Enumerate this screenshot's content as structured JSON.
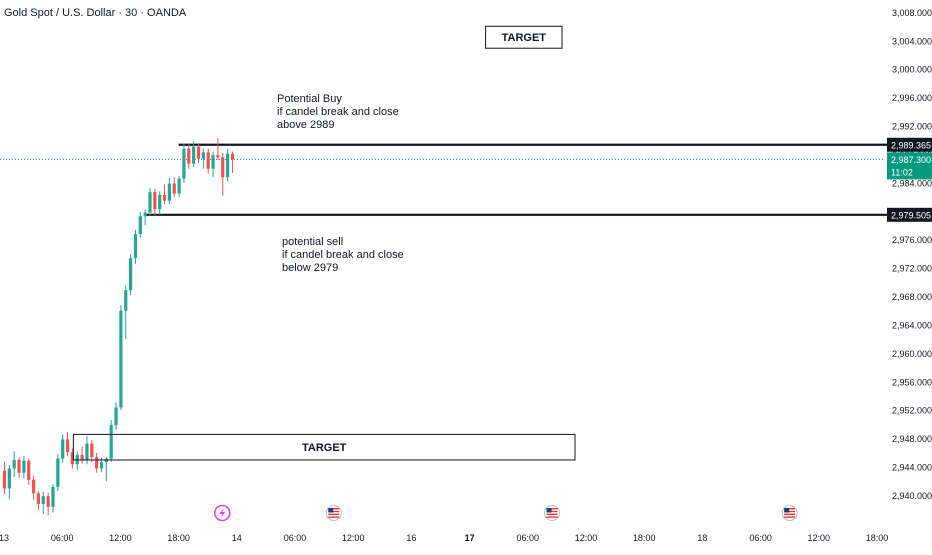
{
  "header": {
    "symbol_title": "Gold Spot / U.S. Dollar · 30 · OANDA"
  },
  "annotations": {
    "target_top_label": "TARGET",
    "target_bottom_label": "TARGET",
    "buy_note": [
      "Potential Buy",
      "if candel break and close",
      "above 2989"
    ],
    "sell_note": [
      "potential sell",
      "if candel break and close",
      "below 2979"
    ]
  },
  "price_tags": {
    "resistance_level": "2,989.365",
    "support_level": "2,979.505",
    "last_price": "2,987.300",
    "countdown": "11:02"
  },
  "colors": {
    "up": "#26a69a",
    "down": "#ef5350",
    "last_price_bg": "#089981",
    "line": "#131722",
    "event_icon": "#e040fb",
    "us_flag": "#e53935"
  },
  "chart_data": {
    "type": "candlestick",
    "title": "Gold Spot / U.S. Dollar · 30 · OANDA",
    "y_ticks": [
      3008,
      3004,
      3000,
      2996,
      2992,
      2988,
      2984,
      2980,
      2976,
      2972,
      2968,
      2964,
      2960,
      2956,
      2952,
      2948,
      2944,
      2940
    ],
    "y_tick_labels": [
      "3,008.000",
      "3,004.000",
      "3,000.000",
      "2,996.000",
      "2,992.000",
      "2,988.000",
      "2,984.000",
      "2,980.000",
      "2,976.000",
      "2,972.000",
      "2,968.000",
      "2,964.000",
      "2,960.000",
      "2,956.000",
      "2,952.000",
      "2,948.000",
      "2,944.000",
      "2,940.000"
    ],
    "ylim": [
      2937.5,
      3009.5
    ],
    "x_tick_labels": [
      "13",
      "06:00",
      "12:00",
      "18:00",
      "14",
      "06:00",
      "12:00",
      "16",
      "17",
      "06:00",
      "12:00",
      "18:00",
      "18",
      "06:00",
      "12:00",
      "18:00"
    ],
    "x_tick_bold": [
      false,
      false,
      false,
      false,
      false,
      false,
      false,
      false,
      true,
      false,
      false,
      false,
      false,
      false,
      false,
      false
    ],
    "x_tick_bar_index": [
      0,
      12,
      24,
      36,
      48,
      60,
      72,
      84,
      96,
      108,
      120,
      132,
      144,
      156,
      168,
      180
    ],
    "candles": [
      [
        2943.5,
        2944.8,
        2940.2,
        2941.0
      ],
      [
        2941.0,
        2944.3,
        2939.5,
        2943.8
      ],
      [
        2943.8,
        2946.2,
        2942.6,
        2945.0
      ],
      [
        2945.0,
        2945.4,
        2942.5,
        2943.2
      ],
      [
        2943.2,
        2945.6,
        2942.4,
        2944.9
      ],
      [
        2944.9,
        2945.2,
        2941.5,
        2942.2
      ],
      [
        2942.2,
        2942.8,
        2939.4,
        2940.3
      ],
      [
        2940.3,
        2940.6,
        2938.0,
        2938.8
      ],
      [
        2938.8,
        2940.5,
        2937.4,
        2939.9
      ],
      [
        2939.9,
        2940.4,
        2937.2,
        2938.4
      ],
      [
        2938.4,
        2941.6,
        2937.6,
        2941.2
      ],
      [
        2941.2,
        2945.8,
        2940.6,
        2945.2
      ],
      [
        2945.2,
        2948.6,
        2944.6,
        2947.9
      ],
      [
        2947.9,
        2948.9,
        2945.5,
        2946.1
      ],
      [
        2946.1,
        2946.6,
        2943.8,
        2944.4
      ],
      [
        2944.4,
        2946.2,
        2943.6,
        2945.7
      ],
      [
        2945.7,
        2946.9,
        2944.5,
        2945.0
      ],
      [
        2945.0,
        2948.4,
        2944.4,
        2947.3
      ],
      [
        2947.3,
        2947.8,
        2944.7,
        2945.4
      ],
      [
        2945.4,
        2946.0,
        2943.2,
        2943.8
      ],
      [
        2943.8,
        2945.3,
        2943.3,
        2944.7
      ],
      [
        2944.7,
        2945.4,
        2942.0,
        2945.2
      ],
      [
        2945.2,
        2950.6,
        2944.7,
        2949.9
      ],
      [
        2949.9,
        2953.1,
        2949.2,
        2952.4
      ],
      [
        2952.4,
        2966.8,
        2952.0,
        2966.0
      ],
      [
        2966.0,
        2969.6,
        2962.0,
        2968.9
      ],
      [
        2968.9,
        2974.0,
        2968.2,
        2973.4
      ],
      [
        2973.4,
        2977.4,
        2972.6,
        2976.8
      ],
      [
        2976.8,
        2979.9,
        2976.2,
        2979.3
      ],
      [
        2979.3,
        2980.3,
        2978.0,
        2979.8
      ],
      [
        2979.8,
        2983.3,
        2979.4,
        2982.7
      ],
      [
        2982.7,
        2983.2,
        2979.3,
        2980.3
      ],
      [
        2980.3,
        2982.8,
        2979.5,
        2982.3
      ],
      [
        2982.3,
        2983.8,
        2981.0,
        2981.5
      ],
      [
        2981.5,
        2984.7,
        2981.0,
        2983.9
      ],
      [
        2983.9,
        2984.8,
        2982.0,
        2982.5
      ],
      [
        2982.5,
        2985.0,
        2982.0,
        2984.6
      ],
      [
        2984.6,
        2989.5,
        2984.0,
        2988.8
      ],
      [
        2988.8,
        2989.4,
        2986.0,
        2986.7
      ],
      [
        2986.7,
        2989.9,
        2986.2,
        2989.1
      ],
      [
        2989.1,
        2989.6,
        2986.8,
        2987.4
      ],
      [
        2987.4,
        2988.8,
        2986.0,
        2988.3
      ],
      [
        2988.3,
        2988.8,
        2985.3,
        2986.0
      ],
      [
        2986.0,
        2988.4,
        2984.8,
        2987.9
      ],
      [
        2987.9,
        2990.3,
        2987.2,
        2987.6
      ],
      [
        2987.6,
        2988.2,
        2982.2,
        2984.8
      ],
      [
        2984.8,
        2988.8,
        2984.2,
        2988.1
      ],
      [
        2988.1,
        2988.4,
        2985.4,
        2987.3
      ]
    ],
    "horizontal_lines": [
      {
        "price": 2989.365,
        "from_bar": 36
      },
      {
        "price": 2979.505,
        "from_bar": 29
      }
    ],
    "target_zones": [
      {
        "label": "TARGET",
        "from_bar": 96,
        "to_bar": 120,
        "price_center": 3004.5
      },
      {
        "label": "TARGET",
        "from_bar": 11,
        "to_bar": 117,
        "price_top": 2948.6,
        "price_bottom": 2945.0
      }
    ],
    "last_price": 2987.3,
    "events": [
      {
        "type": "lightning",
        "bar": 45
      },
      {
        "type": "us-flag",
        "bar": 68
      },
      {
        "type": "us-flag",
        "bar": 113
      },
      {
        "type": "us-flag",
        "bar": 162
      }
    ]
  }
}
